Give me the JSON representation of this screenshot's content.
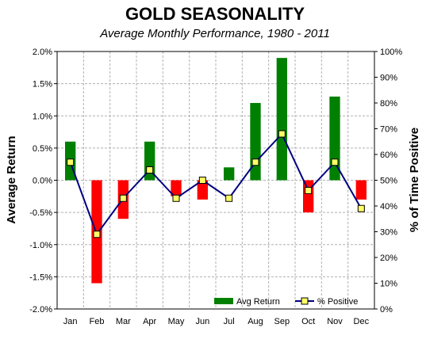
{
  "chart_data": {
    "type": "bar",
    "title": "GOLD SEASONALITY",
    "subtitle": "Average Monthly Performance, 1980 - 2011",
    "ylabel": "Average Return",
    "y2label": "% of Time Positive",
    "categories": [
      "Jan",
      "Feb",
      "Mar",
      "Apr",
      "May",
      "Jun",
      "Jul",
      "Aug",
      "Sep",
      "Oct",
      "Nov",
      "Dec"
    ],
    "ylim": [
      -2.0,
      2.0
    ],
    "y2lim": [
      0,
      100
    ],
    "yticks": [
      "2.0%",
      "1.5%",
      "1.0%",
      "0.5%",
      "0.0%",
      "-0.5%",
      "-1.0%",
      "-1.5%",
      "-2.0%"
    ],
    "y2ticks": [
      "100%",
      "90%",
      "80%",
      "70%",
      "60%",
      "50%",
      "40%",
      "30%",
      "20%",
      "10%",
      "0%"
    ],
    "grid": true,
    "legend_position": "bottom-right",
    "series": [
      {
        "name": "Avg Return",
        "type": "bar",
        "axis": "left",
        "unit": "%",
        "values": [
          0.6,
          -1.6,
          -0.6,
          0.6,
          -0.25,
          -0.3,
          0.2,
          1.2,
          1.9,
          -0.5,
          1.3,
          -0.3
        ]
      },
      {
        "name": "% Positive",
        "type": "line",
        "axis": "right",
        "unit": "%",
        "values": [
          57,
          29,
          43,
          54,
          43,
          50,
          43,
          57,
          68,
          46,
          57,
          39
        ]
      }
    ],
    "colors": {
      "positive_bar": "#008000",
      "negative_bar": "#ff0000",
      "line": "#000080",
      "marker_fill": "#ffff66",
      "marker_stroke": "#000000"
    }
  }
}
